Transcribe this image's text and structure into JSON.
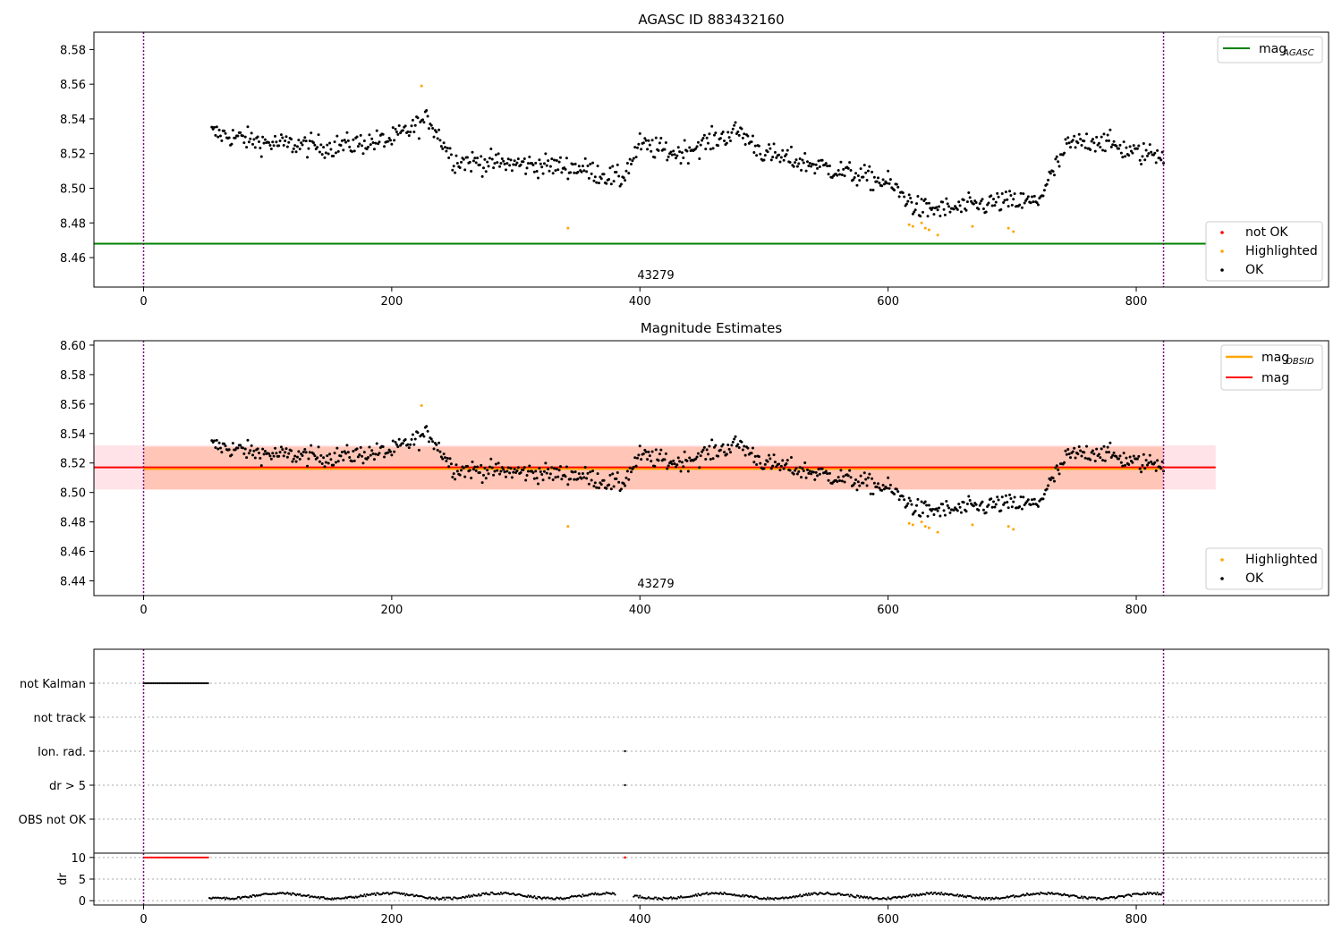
{
  "chart_data": [
    {
      "type": "scatter",
      "title": "AGASC ID 883432160",
      "xlim": [
        -40,
        955
      ],
      "ylim": [
        8.443,
        8.59
      ],
      "xticks": [
        0,
        200,
        400,
        600,
        800
      ],
      "yticks": [
        8.46,
        8.48,
        8.5,
        8.52,
        8.54,
        8.56,
        8.58
      ],
      "vlines": [
        0,
        822
      ],
      "obsid_label": {
        "text": "43279",
        "x": 411
      },
      "mag_agasc": 8.468,
      "legend_upper": [
        {
          "label": "mag",
          "sub": "AGASC",
          "color": "#008000"
        }
      ],
      "legend_lower": [
        {
          "label": "not OK",
          "color": "#ff0000"
        },
        {
          "label": "Highlighted",
          "color": "#ffa500"
        },
        {
          "label": "OK",
          "color": "#000000"
        }
      ],
      "highlighted": [
        [
          224,
          8.559
        ],
        [
          342,
          8.477
        ],
        [
          617,
          8.479
        ],
        [
          620,
          8.478
        ],
        [
          627,
          8.48
        ],
        [
          630,
          8.477
        ],
        [
          633,
          8.476
        ],
        [
          640,
          8.473
        ],
        [
          668,
          8.478
        ],
        [
          697,
          8.477
        ],
        [
          701,
          8.475
        ]
      ]
    },
    {
      "type": "scatter",
      "title": "Magnitude Estimates",
      "xlim": [
        -40,
        955
      ],
      "ylim": [
        8.43,
        8.603
      ],
      "xticks": [
        0,
        200,
        400,
        600,
        800
      ],
      "yticks": [
        8.44,
        8.46,
        8.48,
        8.5,
        8.52,
        8.54,
        8.56,
        8.58,
        8.6
      ],
      "vlines": [
        0,
        822
      ],
      "obsid_label": {
        "text": "43279",
        "x": 411
      },
      "mag": 8.517,
      "mag_band": [
        8.502,
        8.532
      ],
      "mag_obsid": 8.516,
      "obsid_band": [
        8.502,
        8.531
      ],
      "legend_upper": [
        {
          "label": "mag",
          "sub": "OBSID",
          "color": "#ffa500"
        },
        {
          "label": "mag",
          "sub": "",
          "color": "#ff0000"
        }
      ],
      "legend_lower": [
        {
          "label": "Highlighted",
          "color": "#ffa500"
        },
        {
          "label": "OK",
          "color": "#000000"
        }
      ]
    },
    {
      "type": "scatter",
      "xlim": [
        -40,
        955
      ],
      "xticks": [
        0,
        200,
        400,
        600,
        800
      ],
      "vlines": [
        0,
        822
      ],
      "flag_rows": [
        "not Kalman",
        "not track",
        "Ion. rad.",
        "dr > 5",
        "OBS not OK"
      ],
      "not_kalman_range": [
        0,
        52
      ],
      "single_flags": {
        "Ion. rad.": 388,
        "dr > 5": 388
      },
      "dr_ylabel": "dr",
      "dr_yticks": [
        0,
        5,
        10
      ],
      "dr_ylim": [
        -1,
        11
      ],
      "dr_flagged_value": 10
    }
  ]
}
